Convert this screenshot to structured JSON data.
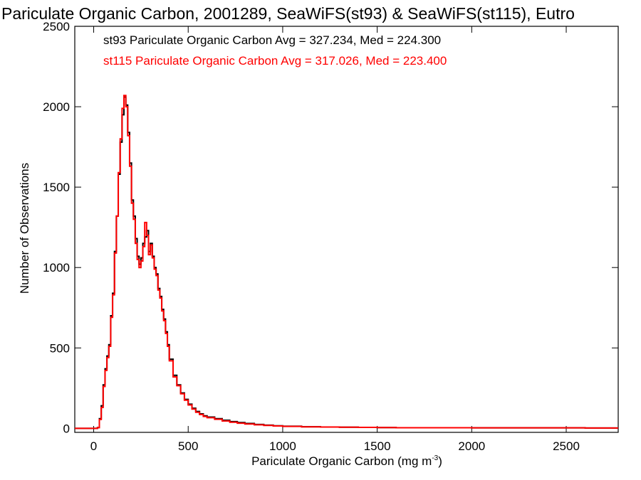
{
  "chart_data": {
    "type": "line",
    "title": "Pariculate Organic Carbon, 2001289, SeaWiFS(st93) & SeaWiFS(st115), Eutro",
    "xlabel": "Pariculate Organic Carbon (mg m",
    "xlabel_sup": "-3",
    "xlabel_end": ")",
    "ylabel": "Number of Observations",
    "xlim": [
      -100,
      2775
    ],
    "ylim": [
      -25,
      2500
    ],
    "x_ticks": [
      0,
      500,
      1000,
      1500,
      2000,
      2500
    ],
    "y_ticks": [
      0,
      500,
      1000,
      1500,
      2000,
      2500
    ],
    "x_tick_labels": [
      "0",
      "500",
      "1000",
      "1500",
      "2000",
      "2500"
    ],
    "y_tick_labels": [
      "0",
      "500",
      "1000",
      "1500",
      "2000",
      "2500"
    ],
    "grid": false,
    "legend_placement": "top-left",
    "step": "histogram",
    "series": [
      {
        "name": "st93",
        "legend_text": "st93 Pariculate Organic Carbon Avg = 327.234, Med = 224.300",
        "color": "#000000",
        "x": [
          -100,
          20,
          30,
          40,
          50,
          60,
          70,
          80,
          90,
          100,
          110,
          120,
          130,
          140,
          150,
          160,
          170,
          180,
          190,
          200,
          210,
          220,
          230,
          240,
          250,
          260,
          270,
          280,
          290,
          300,
          310,
          320,
          330,
          340,
          350,
          360,
          370,
          380,
          390,
          400,
          420,
          440,
          460,
          480,
          500,
          520,
          540,
          560,
          580,
          600,
          640,
          680,
          720,
          760,
          800,
          850,
          900,
          950,
          1000,
          1100,
          1200,
          1300,
          1400,
          1500,
          1600,
          1800,
          2000,
          2200,
          2400,
          2600,
          2775
        ],
        "y": [
          0,
          5,
          60,
          140,
          270,
          370,
          450,
          520,
          700,
          840,
          1100,
          1320,
          1580,
          1780,
          1950,
          2060,
          2010,
          1840,
          1650,
          1420,
          1320,
          1180,
          1070,
          1020,
          1060,
          1150,
          1190,
          1230,
          1100,
          1150,
          1070,
          1000,
          960,
          870,
          820,
          740,
          680,
          600,
          520,
          430,
          330,
          270,
          220,
          180,
          150,
          125,
          105,
          90,
          78,
          70,
          60,
          50,
          42,
          36,
          30,
          24,
          20,
          16,
          13,
          10,
          8,
          7,
          6,
          5,
          4,
          4,
          3,
          3,
          3,
          2,
          2
        ]
      },
      {
        "name": "st115",
        "legend_text": "st115 Pariculate Organic Carbon Avg = 317.026, Med = 223.400",
        "color": "#ff0000",
        "x": [
          -100,
          20,
          30,
          40,
          50,
          60,
          70,
          80,
          90,
          100,
          110,
          120,
          130,
          140,
          150,
          160,
          170,
          180,
          190,
          200,
          210,
          220,
          230,
          240,
          250,
          260,
          270,
          280,
          290,
          300,
          310,
          320,
          330,
          340,
          350,
          360,
          370,
          380,
          390,
          400,
          420,
          440,
          460,
          480,
          500,
          520,
          540,
          560,
          580,
          600,
          640,
          680,
          720,
          760,
          800,
          850,
          900,
          950,
          1000,
          1100,
          1200,
          1300,
          1400,
          1500,
          1600,
          1800,
          2000,
          2200,
          2400,
          2600,
          2775
        ],
        "y": [
          0,
          5,
          55,
          130,
          260,
          360,
          440,
          510,
          690,
          830,
          1090,
          1320,
          1590,
          1800,
          1990,
          2070,
          2000,
          1820,
          1630,
          1400,
          1300,
          1150,
          1050,
          1000,
          1040,
          1130,
          1280,
          1200,
          1080,
          1140,
          1060,
          990,
          950,
          860,
          810,
          730,
          670,
          590,
          510,
          420,
          320,
          265,
          215,
          175,
          145,
          120,
          100,
          86,
          74,
          66,
          56,
          46,
          38,
          32,
          27,
          22,
          18,
          15,
          12,
          9,
          8,
          7,
          6,
          5,
          4,
          4,
          3,
          3,
          3,
          2,
          2
        ]
      }
    ]
  }
}
